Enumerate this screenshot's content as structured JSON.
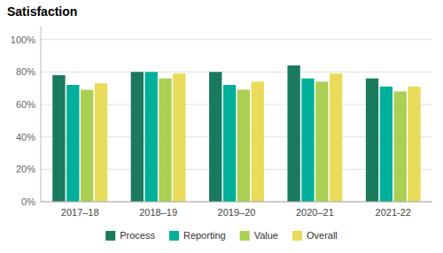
{
  "chart_data": {
    "type": "bar",
    "title": "Satisfaction",
    "categories": [
      "2017–18",
      "2018–19",
      "2019–20",
      "2020–21",
      "2021-22"
    ],
    "series": [
      {
        "name": "Process",
        "color": "#1a7a5e",
        "values": [
          0.78,
          0.8,
          0.8,
          0.84,
          0.76
        ]
      },
      {
        "name": "Reporting",
        "color": "#00b09b",
        "values": [
          0.72,
          0.8,
          0.72,
          0.76,
          0.71
        ]
      },
      {
        "name": "Value",
        "color": "#aacf53",
        "values": [
          0.69,
          0.76,
          0.69,
          0.74,
          0.68
        ]
      },
      {
        "name": "Overall",
        "color": "#e8dc5a",
        "values": [
          0.73,
          0.79,
          0.74,
          0.79,
          0.71
        ]
      }
    ],
    "ylim": [
      0,
      1.08
    ],
    "yticks": [
      {
        "value": 0,
        "label": "0%"
      },
      {
        "value": 0.2,
        "label": "20%"
      },
      {
        "value": 0.4,
        "label": "40%"
      },
      {
        "value": 0.6,
        "label": "60%"
      },
      {
        "value": 0.8,
        "label": "80%"
      },
      {
        "value": 1.0,
        "label": "100%"
      }
    ],
    "grid": true,
    "legend": "bottom"
  }
}
